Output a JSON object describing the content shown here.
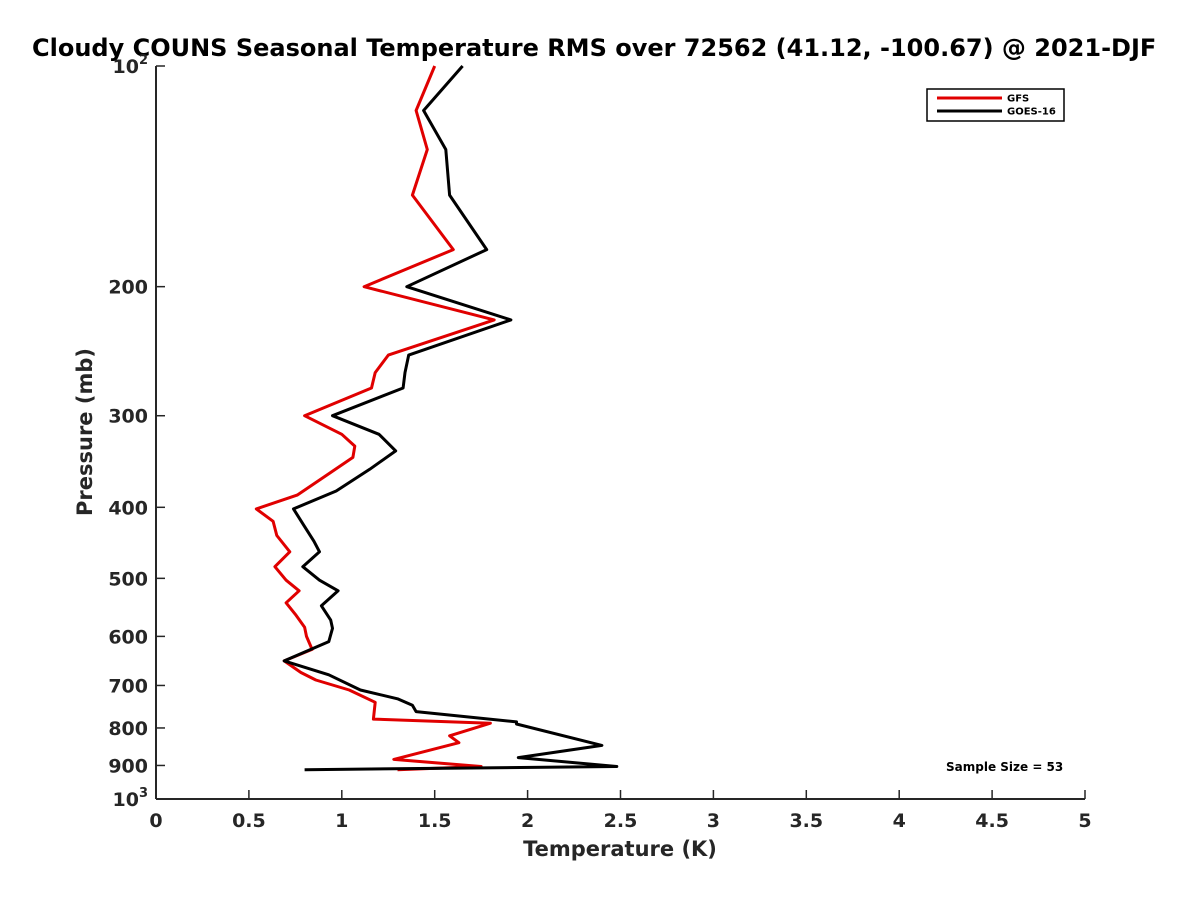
{
  "chart_data": {
    "type": "line",
    "title": "Cloudy COUNS Seasonal Temperature RMS over 72562 (41.12, -100.67) @ 2021-DJF",
    "xlabel": "Temperature (K)",
    "ylabel": "Pressure (mb)",
    "xlim": [
      0,
      5
    ],
    "ylim": [
      100,
      1000
    ],
    "yscale": "log",
    "y_reversed": true,
    "grid": false,
    "legend_position": "top-right",
    "x_ticks": [
      {
        "value": 0,
        "label": "0"
      },
      {
        "value": 0.5,
        "label": "0.5"
      },
      {
        "value": 1,
        "label": "1"
      },
      {
        "value": 1.5,
        "label": "1.5"
      },
      {
        "value": 2,
        "label": "2"
      },
      {
        "value": 2.5,
        "label": "2.5"
      },
      {
        "value": 3,
        "label": "3"
      },
      {
        "value": 3.5,
        "label": "3.5"
      },
      {
        "value": 4,
        "label": "4"
      },
      {
        "value": 4.5,
        "label": "4.5"
      },
      {
        "value": 5,
        "label": "5"
      }
    ],
    "y_ticks": [
      {
        "value": 100,
        "label": "10",
        "sup": "2"
      },
      {
        "value": 200,
        "label": "200",
        "sup": ""
      },
      {
        "value": 300,
        "label": "300",
        "sup": ""
      },
      {
        "value": 400,
        "label": "400",
        "sup": ""
      },
      {
        "value": 500,
        "label": "500",
        "sup": ""
      },
      {
        "value": 600,
        "label": "600",
        "sup": ""
      },
      {
        "value": 700,
        "label": "700",
        "sup": ""
      },
      {
        "value": 800,
        "label": "800",
        "sup": ""
      },
      {
        "value": 900,
        "label": "900",
        "sup": ""
      },
      {
        "value": 1000,
        "label": "10",
        "sup": "3"
      }
    ],
    "series": [
      {
        "name": "GFS",
        "color": "#e00000",
        "points": [
          [
            1.5,
            100
          ],
          [
            1.4,
            115
          ],
          [
            1.46,
            130
          ],
          [
            1.38,
            150
          ],
          [
            1.6,
            178
          ],
          [
            1.12,
            200
          ],
          [
            1.82,
            222
          ],
          [
            1.25,
            248
          ],
          [
            1.18,
            262
          ],
          [
            1.16,
            275
          ],
          [
            0.8,
            300
          ],
          [
            1.0,
            318
          ],
          [
            1.07,
            330
          ],
          [
            1.06,
            342
          ],
          [
            0.93,
            360
          ],
          [
            0.76,
            385
          ],
          [
            0.54,
            402
          ],
          [
            0.63,
            418
          ],
          [
            0.65,
            437
          ],
          [
            0.72,
            460
          ],
          [
            0.64,
            482
          ],
          [
            0.7,
            503
          ],
          [
            0.77,
            520
          ],
          [
            0.7,
            540
          ],
          [
            0.75,
            560
          ],
          [
            0.8,
            583
          ],
          [
            0.81,
            600
          ],
          [
            0.84,
            625
          ],
          [
            0.69,
            648
          ],
          [
            0.78,
            672
          ],
          [
            0.86,
            688
          ],
          [
            1.04,
            710
          ],
          [
            1.18,
            738
          ],
          [
            1.17,
            778
          ],
          [
            1.8,
            788
          ],
          [
            1.58,
            820
          ],
          [
            1.63,
            838
          ],
          [
            1.28,
            883
          ],
          [
            1.75,
            903
          ],
          [
            1.3,
            912
          ]
        ]
      },
      {
        "name": "GOES-16",
        "color": "#000000",
        "points": [
          [
            1.65,
            100
          ],
          [
            1.44,
            115
          ],
          [
            1.56,
            130
          ],
          [
            1.58,
            150
          ],
          [
            1.78,
            178
          ],
          [
            1.35,
            200
          ],
          [
            1.91,
            222
          ],
          [
            1.36,
            248
          ],
          [
            1.34,
            262
          ],
          [
            1.33,
            275
          ],
          [
            0.95,
            300
          ],
          [
            1.2,
            318
          ],
          [
            1.29,
            335
          ],
          [
            1.15,
            355
          ],
          [
            0.97,
            380
          ],
          [
            0.74,
            402
          ],
          [
            0.8,
            425
          ],
          [
            0.85,
            445
          ],
          [
            0.88,
            460
          ],
          [
            0.79,
            482
          ],
          [
            0.88,
            503
          ],
          [
            0.98,
            520
          ],
          [
            0.89,
            545
          ],
          [
            0.94,
            570
          ],
          [
            0.95,
            585
          ],
          [
            0.93,
            610
          ],
          [
            0.69,
            648
          ],
          [
            0.93,
            677
          ],
          [
            1.1,
            710
          ],
          [
            1.3,
            730
          ],
          [
            1.38,
            745
          ],
          [
            1.4,
            760
          ],
          [
            1.94,
            785
          ],
          [
            1.94,
            790
          ],
          [
            2.4,
            845
          ],
          [
            1.95,
            878
          ],
          [
            2.48,
            903
          ],
          [
            0.8,
            912
          ]
        ]
      }
    ],
    "annotations": [
      "Sample Size = 53"
    ]
  }
}
